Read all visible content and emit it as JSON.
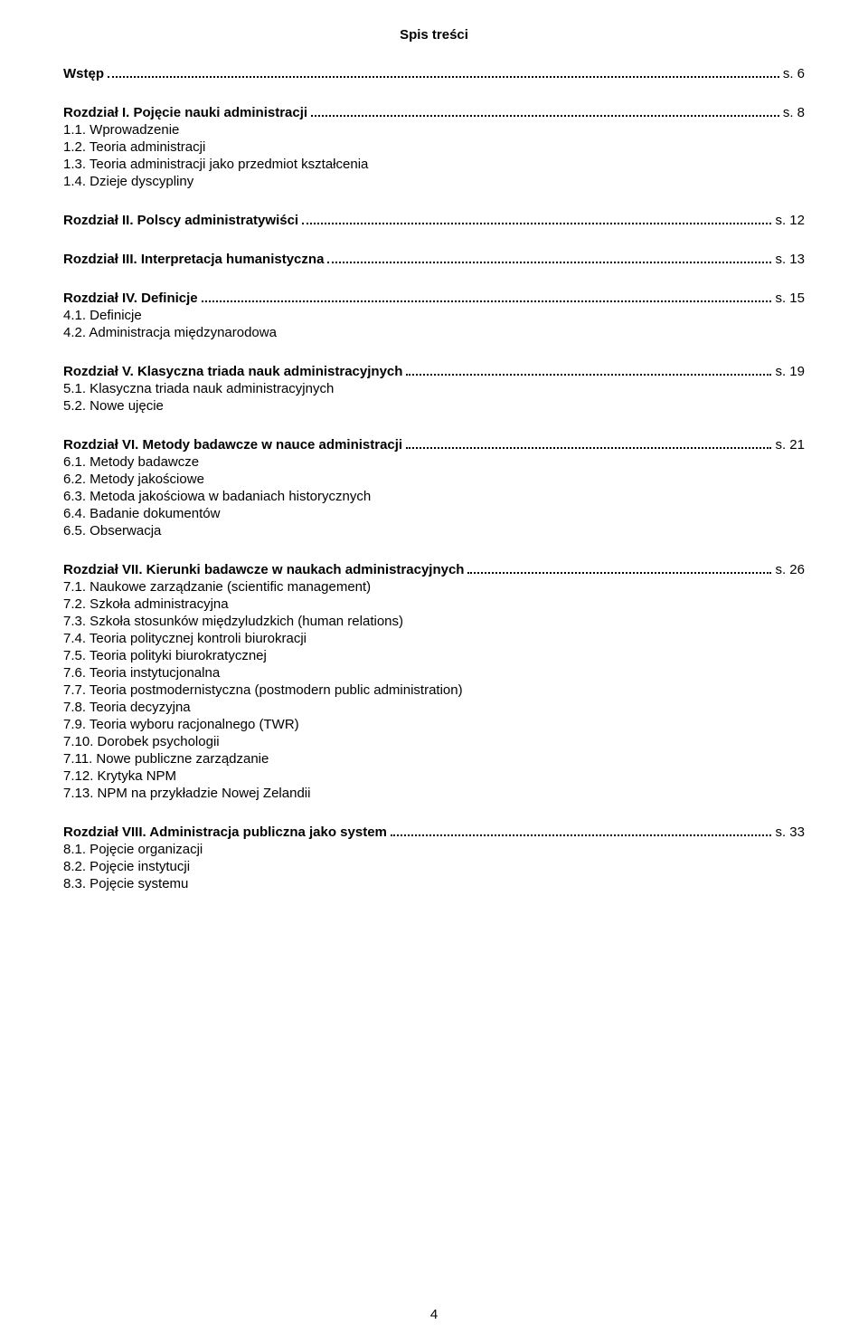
{
  "title": "Spis treści",
  "page_number": "4",
  "colors": {
    "background": "#ffffff",
    "text": "#000000",
    "dots": "#000000"
  },
  "typography": {
    "font_family": "Verdana",
    "base_fontsize": 15,
    "bold_weight": 700
  },
  "toc": [
    {
      "heading": {
        "label_bold": "Wstęp",
        "label_plain": "",
        "page": "s. 6"
      },
      "subs": []
    },
    {
      "heading": {
        "label_bold": "Rozdział I. Pojęcie nauki administracji",
        "label_plain": "",
        "page": "s. 8"
      },
      "subs": [
        "1.1. Wprowadzenie",
        "1.2. Teoria administracji",
        "1.3. Teoria administracji jako przedmiot kształcenia",
        "1.4. Dzieje dyscypliny"
      ]
    },
    {
      "heading": {
        "label_bold": "Rozdział II. Polscy administratywiści",
        "label_plain": "",
        "page": "s. 12"
      },
      "subs": []
    },
    {
      "heading": {
        "label_bold": "Rozdział III. Interpretacja humanistyczna",
        "label_plain": "",
        "page": "s. 13"
      },
      "subs": []
    },
    {
      "heading": {
        "label_bold": "Rozdział IV. Definicje",
        "label_plain": "",
        "page": "s. 15"
      },
      "subs": [
        "4.1. Definicje",
        "4.2. Administracja międzynarodowa"
      ]
    },
    {
      "heading": {
        "label_bold": "Rozdział V. Klasyczna triada nauk administracyjnych",
        "label_plain": "",
        "page": "s. 19"
      },
      "subs": [
        "5.1. Klasyczna triada nauk administracyjnych",
        "5.2. Nowe ujęcie"
      ]
    },
    {
      "heading": {
        "label_bold": "Rozdział VI. Metody badawcze w nauce administracji",
        "label_plain": "",
        "page": "s. 21"
      },
      "subs": [
        "6.1. Metody badawcze",
        "6.2. Metody jakościowe",
        "6.3. Metoda jakościowa w badaniach historycznych",
        "6.4. Badanie dokumentów",
        "6.5. Obserwacja"
      ]
    },
    {
      "heading": {
        "label_bold": "Rozdział VII. Kierunki badawcze w naukach administracyjnych",
        "label_plain": "",
        "page": "s. 26"
      },
      "subs": [
        "7.1. Naukowe zarządzanie (scientific management)",
        "7.2. Szkoła administracyjna",
        "7.3. Szkoła stosunków międzyludzkich (human relations)",
        "7.4. Teoria politycznej kontroli biurokracji",
        "7.5. Teoria polityki biurokratycznej",
        "7.6. Teoria instytucjonalna",
        "7.7. Teoria postmodernistyczna (postmodern public administration)",
        "7.8. Teoria decyzyjna",
        "7.9. Teoria wyboru racjonalnego (TWR)",
        "7.10. Dorobek psychologii",
        "7.11. Nowe publiczne zarządzanie",
        "7.12. Krytyka NPM",
        "7.13. NPM na przykładzie Nowej Zelandii"
      ]
    },
    {
      "heading": {
        "label_bold": "Rozdział VIII. Administracja publiczna jako system",
        "label_plain": "",
        "page": "s. 33"
      },
      "subs": [
        "8.1. Pojęcie organizacji",
        "8.2. Pojęcie instytucji",
        "8.3. Pojęcie systemu"
      ]
    }
  ]
}
